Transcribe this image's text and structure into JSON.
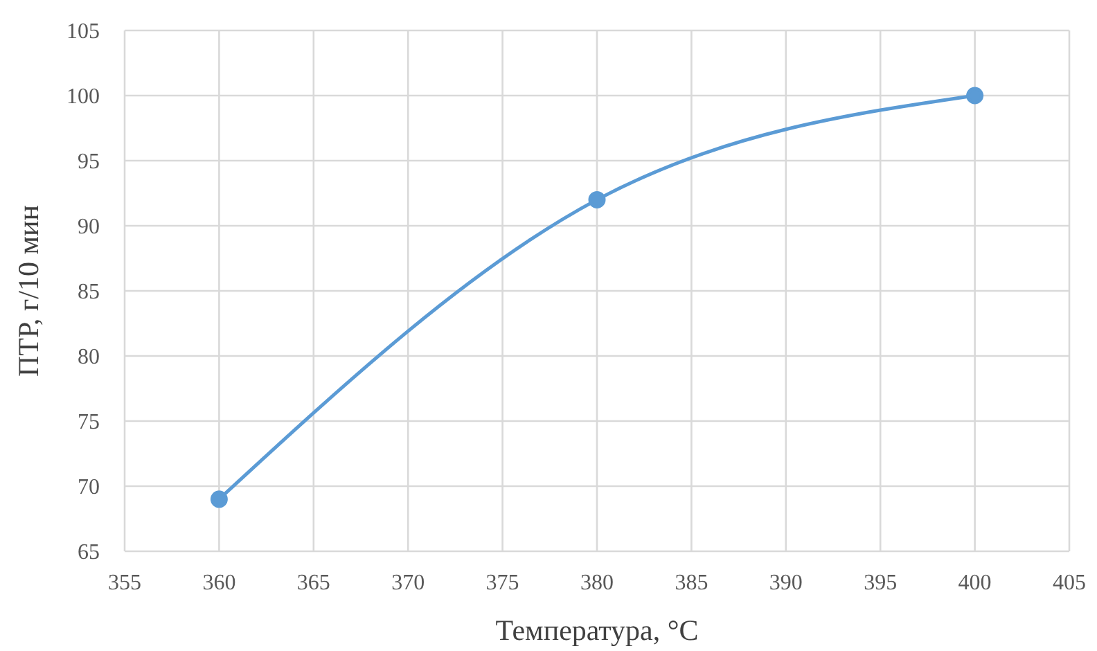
{
  "chart_data": {
    "type": "line",
    "xlabel": "Температура, °C",
    "ylabel": "ПТР, г/10 мин",
    "x": [
      360,
      380,
      400
    ],
    "series": [
      {
        "color": "#5b9bd5",
        "values": [
          69,
          92,
          100
        ]
      }
    ],
    "xlim": [
      355,
      405
    ],
    "xticks": [
      355,
      360,
      365,
      370,
      375,
      380,
      385,
      390,
      395,
      400,
      405
    ],
    "ylim": [
      65,
      105
    ],
    "yticks": [
      65,
      70,
      75,
      80,
      85,
      90,
      95,
      100,
      105
    ],
    "grid": true,
    "marker": "circle"
  }
}
